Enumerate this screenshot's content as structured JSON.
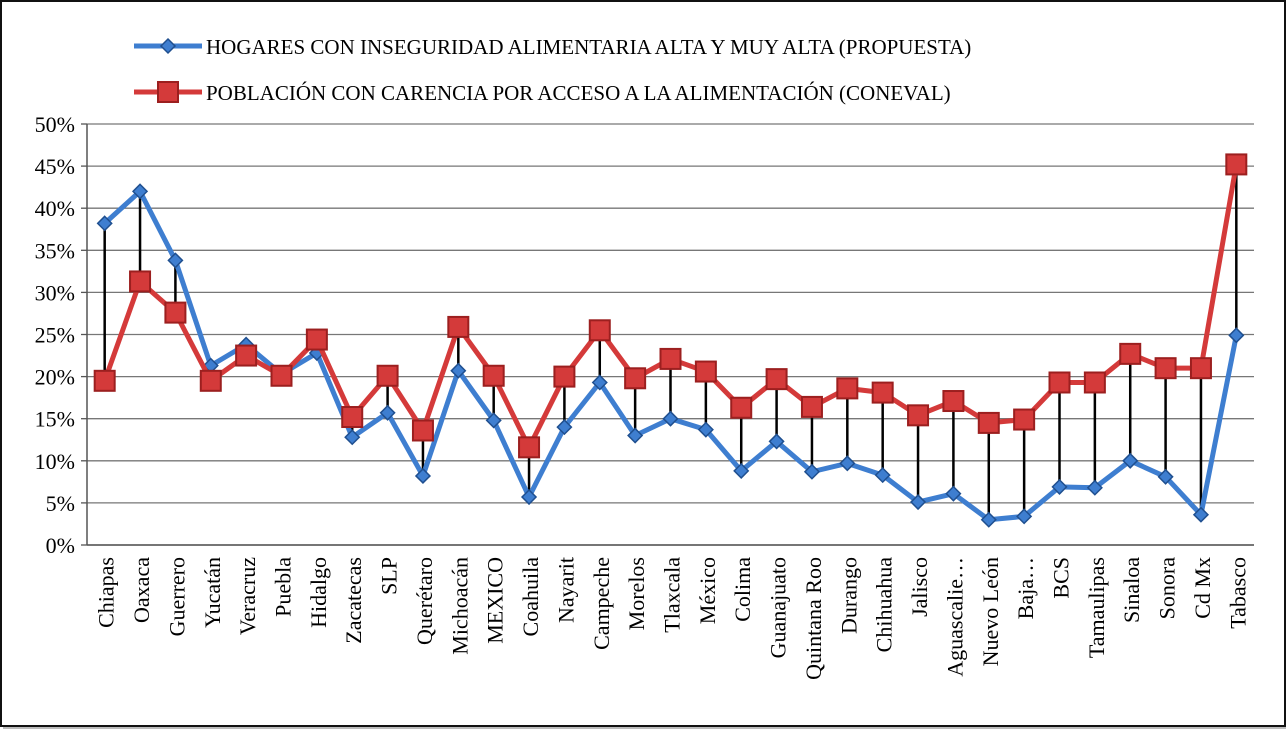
{
  "chart_data": {
    "type": "line",
    "title": "",
    "xlabel": "",
    "ylabel": "",
    "ylim": [
      0,
      50
    ],
    "ytick_step": 5,
    "ytick_suffix": "%",
    "grid": true,
    "legend_position": "top",
    "drop_lines": true,
    "categories": [
      "Chiapas",
      "Oaxaca",
      "Guerrero",
      "Yucatán",
      "Veracruz",
      "Puebla",
      "Hidalgo",
      "Zacatecas",
      "SLP",
      "Querétaro",
      "Michoacán",
      "MEXICO",
      "Coahuila",
      "Nayarit",
      "Campeche",
      "Morelos",
      "Tlaxcala",
      "México",
      "Colima",
      "Guanajuato",
      "Quintana Roo",
      "Durango",
      "Chihuahua",
      "Jalisco",
      "Aguascalie…",
      "Nuevo León",
      "Baja…",
      "BCS",
      "Tamaulipas",
      "Sinaloa",
      "Sonora",
      "Cd Mx",
      "Tabasco"
    ],
    "series": [
      {
        "name": "HOGARES CON INSEGURIDAD ALIMENTARIA ALTA Y MUY ALTA (PROPUESTA)",
        "color": "#3e7ed0",
        "marker": "diamond",
        "values": [
          38.2,
          42.0,
          33.8,
          21.3,
          23.8,
          20.3,
          22.8,
          12.8,
          15.7,
          8.2,
          20.7,
          14.8,
          5.7,
          14.0,
          19.3,
          13.0,
          15.0,
          13.7,
          8.8,
          12.3,
          8.7,
          9.7,
          8.3,
          5.1,
          6.1,
          3.0,
          3.4,
          6.9,
          6.8,
          10.0,
          8.1,
          3.6,
          24.9
        ]
      },
      {
        "name": "POBLACIÓN CON CARENCIA POR ACCESO A LA ALIMENTACIÓN (CONEVAL)",
        "color": "#d43a3a",
        "marker": "square",
        "values": [
          19.5,
          31.3,
          27.6,
          19.5,
          22.5,
          20.1,
          24.4,
          15.2,
          20.1,
          13.6,
          25.9,
          20.1,
          11.6,
          20.0,
          25.5,
          19.8,
          22.1,
          20.6,
          16.3,
          19.7,
          16.4,
          18.6,
          18.1,
          15.4,
          17.1,
          14.5,
          14.9,
          19.3,
          19.3,
          22.7,
          21.0,
          21.0,
          45.2
        ]
      }
    ]
  }
}
